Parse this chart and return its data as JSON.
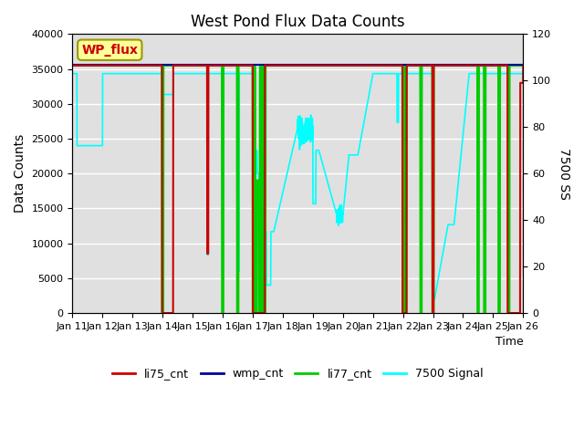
{
  "title": "West Pond Flux Data Counts",
  "xlabel": "Time",
  "ylabel_left": "Data Counts",
  "ylabel_right": "7500 SS",
  "xlim": [
    0,
    15
  ],
  "ylim_left": [
    0,
    40000
  ],
  "ylim_right": [
    0,
    120
  ],
  "xtick_labels": [
    "Jan 11",
    "Jan 12",
    "Jan 13",
    "Jan 14",
    "Jan 15",
    "Jan 16",
    "Jan 17",
    "Jan 18",
    "Jan 19",
    "Jan 20",
    "Jan 21",
    "Jan 22",
    "Jan 23",
    "Jan 24",
    "Jan 25",
    "Jan 26"
  ],
  "yticks_left": [
    0,
    5000,
    10000,
    15000,
    20000,
    25000,
    30000,
    35000,
    40000
  ],
  "yticks_right": [
    0,
    20,
    40,
    60,
    80,
    100,
    120
  ],
  "bg_color": "#e0e0e0",
  "line_colors": {
    "li75": "#cc0000",
    "wmp": "#000099",
    "li77": "#00cc00",
    "sig": "cyan"
  }
}
